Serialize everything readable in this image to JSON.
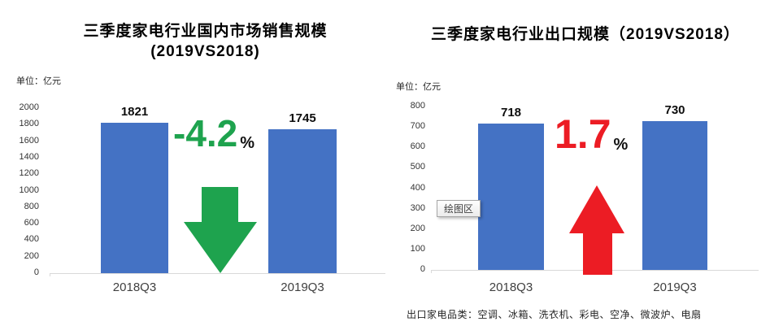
{
  "colors": {
    "bar": "#4472C4",
    "axis_line": "#D9D9D9",
    "decrease": "#1EA34E",
    "increase": "#EC1C24"
  },
  "chart_data": [
    {
      "type": "bar",
      "title": "三季度家电行业国内市场销售规模 (2019VS2018)",
      "title_lines": [
        "三季度家电行业国内市场销售规模",
        "(2019VS2018)"
      ],
      "unit_label": "单位：亿元",
      "categories": [
        "2018Q3",
        "2019Q3"
      ],
      "values": [
        1821,
        1745
      ],
      "xlabel": "",
      "ylabel": "亿元",
      "ylim": [
        0,
        2000
      ],
      "ytick_step": 200,
      "grid": false,
      "legend": "none",
      "bar_color": "#4472C4",
      "annotation": {
        "text": "-4.2",
        "suffix": "%",
        "color": "#1EA34E",
        "direction": "down"
      }
    },
    {
      "type": "bar",
      "title": "三季度家电行业出口规模（2019VS2018）",
      "title_lines": [
        "三季度家电行业出口规模（2019VS2018）"
      ],
      "unit_label": "单位：亿元",
      "categories": [
        "2018Q3",
        "2019Q3"
      ],
      "values": [
        718,
        730
      ],
      "xlabel": "",
      "ylabel": "亿元",
      "ylim": [
        0,
        800
      ],
      "ytick_step": 100,
      "grid": false,
      "legend": "none",
      "bar_color": "#4472C4",
      "annotation": {
        "text": "1.7",
        "suffix": "%",
        "color": "#EC1C24",
        "direction": "up"
      }
    }
  ],
  "tooltip": {
    "text": "绘图区"
  },
  "footnote": {
    "text": "出口家电品类：空调、冰箱、洗衣机、彩电、空净、微波炉、电扇"
  }
}
